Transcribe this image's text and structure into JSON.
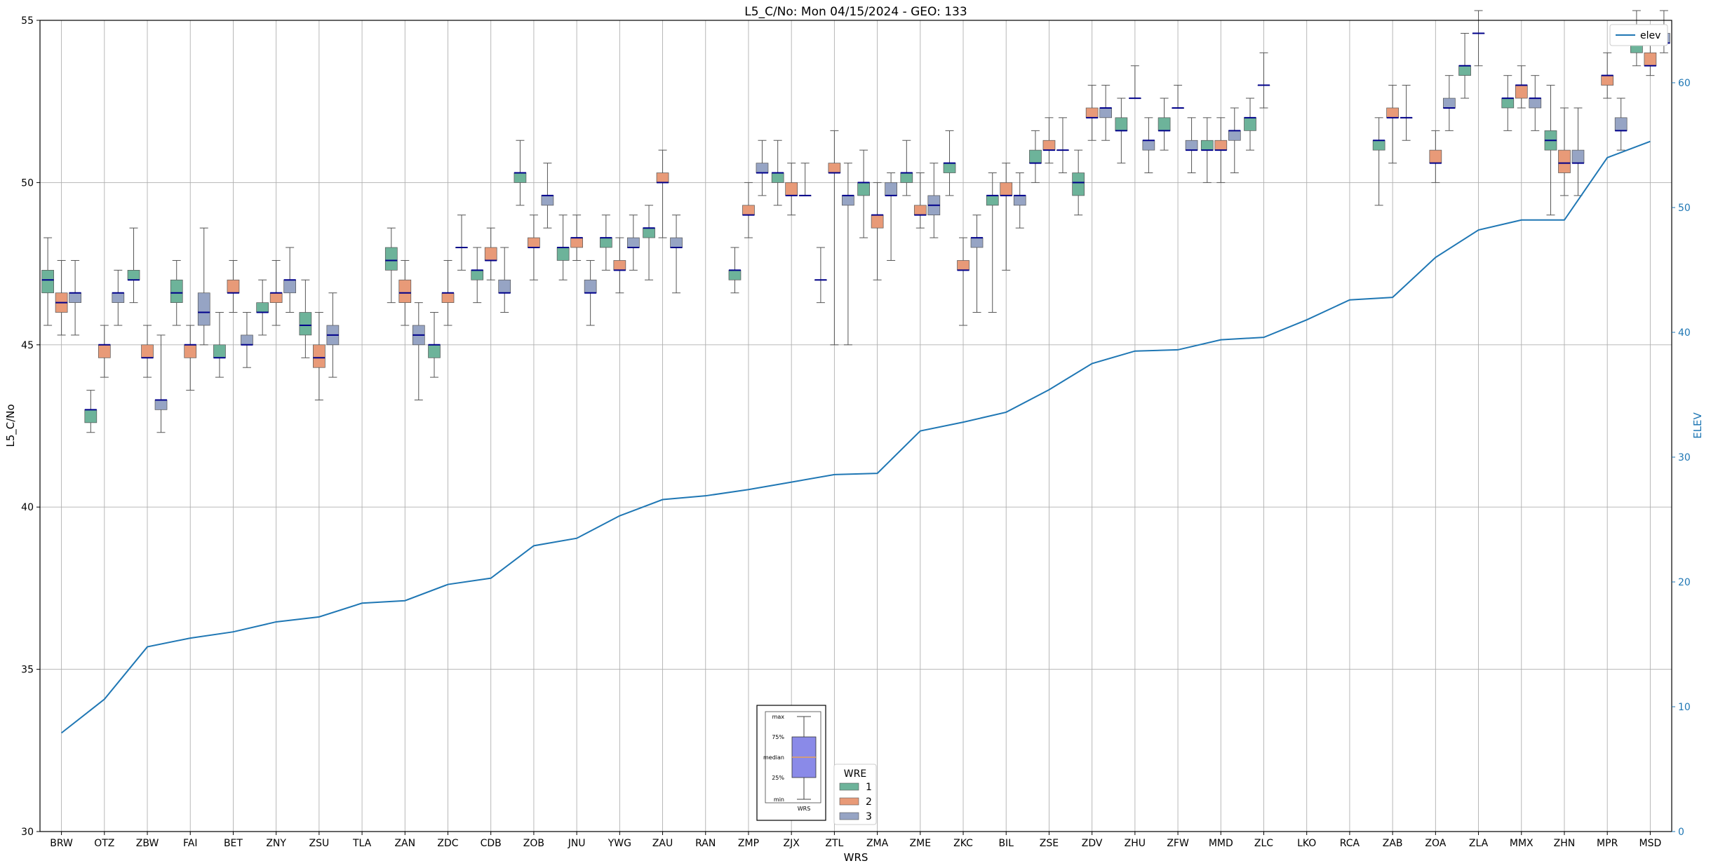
{
  "chart_data": {
    "type": "box",
    "title": "L5_C/No: Mon 04/15/2024 - GEO: 133",
    "xlabel": "WRS",
    "ylabel": "L5_C/No",
    "y2label": "ELEV",
    "ylim": [
      30,
      55
    ],
    "y2lim": [
      0,
      65
    ],
    "yticks": [
      30,
      35,
      40,
      45,
      50,
      55
    ],
    "y2ticks": [
      0,
      10,
      20,
      30,
      40,
      50,
      60
    ],
    "grid": true,
    "categories": [
      "BRW",
      "OTZ",
      "ZBW",
      "FAI",
      "BET",
      "ZNY",
      "ZSU",
      "TLA",
      "ZAN",
      "ZDC",
      "CDB",
      "ZOB",
      "JNU",
      "YWG",
      "ZAU",
      "RAN",
      "ZMP",
      "ZJX",
      "ZTL",
      "ZMA",
      "ZME",
      "ZKC",
      "BIL",
      "ZSE",
      "ZDV",
      "ZHU",
      "ZFW",
      "MMD",
      "ZLC",
      "LKO",
      "RCA",
      "ZAB",
      "ZOA",
      "ZLA",
      "MMX",
      "ZHN",
      "MPR",
      "MSD"
    ],
    "wre_colors": {
      "1": "#6db39a",
      "2": "#e89a78",
      "3": "#96a4c4"
    },
    "median_color": "#00008b",
    "whisker_color": "#555555",
    "series": [
      {
        "name": "1",
        "boxes": [
          {
            "cat": "BRW",
            "min": 45.6,
            "q1": 46.6,
            "med": 47.0,
            "q3": 47.3,
            "max": 48.3
          },
          {
            "cat": "OTZ",
            "min": 42.3,
            "q1": 42.6,
            "med": 43.0,
            "q3": 43.0,
            "max": 43.6
          },
          {
            "cat": "ZBW",
            "min": 46.3,
            "q1": 47.0,
            "med": 47.0,
            "q3": 47.3,
            "max": 48.6
          },
          {
            "cat": "FAI",
            "min": 45.6,
            "q1": 46.3,
            "med": 46.6,
            "q3": 47.0,
            "max": 47.6
          },
          {
            "cat": "BET",
            "min": 44.0,
            "q1": 44.6,
            "med": 44.6,
            "q3": 45.0,
            "max": 46.0
          },
          {
            "cat": "ZNY",
            "min": 45.3,
            "q1": 46.0,
            "med": 46.0,
            "q3": 46.3,
            "max": 47.0
          },
          {
            "cat": "ZSU",
            "min": 44.6,
            "q1": 45.3,
            "med": 45.6,
            "q3": 46.0,
            "max": 47.0
          },
          {
            "cat": "ZAN",
            "min": 46.3,
            "q1": 47.3,
            "med": 47.6,
            "q3": 48.0,
            "max": 48.6
          },
          {
            "cat": "ZDC",
            "min": 44.0,
            "q1": 44.6,
            "med": 45.0,
            "q3": 45.0,
            "max": 46.0
          },
          {
            "cat": "CDB",
            "min": 46.3,
            "q1": 47.0,
            "med": 47.3,
            "q3": 47.3,
            "max": 48.0
          },
          {
            "cat": "ZOB",
            "min": 49.3,
            "q1": 50.0,
            "med": 50.3,
            "q3": 50.3,
            "max": 51.3
          },
          {
            "cat": "JNU",
            "min": 47.0,
            "q1": 47.6,
            "med": 48.0,
            "q3": 48.0,
            "max": 49.0
          },
          {
            "cat": "YWG",
            "min": 47.3,
            "q1": 48.0,
            "med": 48.3,
            "q3": 48.3,
            "max": 49.0
          },
          {
            "cat": "ZAU",
            "min": 47.0,
            "q1": 48.3,
            "med": 48.6,
            "q3": 48.6,
            "max": 49.3
          },
          {
            "cat": "ZMP",
            "min": 46.6,
            "q1": 47.0,
            "med": 47.3,
            "q3": 47.3,
            "max": 48.0
          },
          {
            "cat": "ZJX",
            "min": 49.3,
            "q1": 50.0,
            "med": 50.3,
            "q3": 50.3,
            "max": 51.3
          },
          {
            "cat": "ZTL",
            "min": 46.3,
            "q1": 47.0,
            "med": 47.0,
            "q3": 47.0,
            "max": 48.0
          },
          {
            "cat": "ZMA",
            "min": 48.3,
            "q1": 49.6,
            "med": 50.0,
            "q3": 50.0,
            "max": 51.0
          },
          {
            "cat": "ZME",
            "min": 49.6,
            "q1": 50.0,
            "med": 50.3,
            "q3": 50.3,
            "max": 51.3
          },
          {
            "cat": "ZKC",
            "min": 49.6,
            "q1": 50.3,
            "med": 50.6,
            "q3": 50.6,
            "max": 51.6
          },
          {
            "cat": "BIL",
            "min": 46.0,
            "q1": 49.3,
            "med": 49.6,
            "q3": 49.6,
            "max": 50.3
          },
          {
            "cat": "ZSE",
            "min": 50.0,
            "q1": 50.6,
            "med": 50.6,
            "q3": 51.0,
            "max": 51.6
          },
          {
            "cat": "ZDV",
            "min": 49.0,
            "q1": 49.6,
            "med": 50.0,
            "q3": 50.3,
            "max": 51.0
          },
          {
            "cat": "ZHU",
            "min": 50.6,
            "q1": 51.6,
            "med": 51.6,
            "q3": 52.0,
            "max": 52.6
          },
          {
            "cat": "ZFW",
            "min": 51.0,
            "q1": 51.6,
            "med": 51.6,
            "q3": 52.0,
            "max": 52.6
          },
          {
            "cat": "MMD",
            "min": 50.0,
            "q1": 51.0,
            "med": 51.0,
            "q3": 51.3,
            "max": 52.0
          },
          {
            "cat": "ZLC",
            "min": 51.0,
            "q1": 51.6,
            "med": 52.0,
            "q3": 52.0,
            "max": 52.6
          },
          {
            "cat": "ZAB",
            "min": 49.3,
            "q1": 51.0,
            "med": 51.3,
            "q3": 51.3,
            "max": 52.0
          },
          {
            "cat": "ZLA",
            "min": 52.6,
            "q1": 53.3,
            "med": 53.6,
            "q3": 53.6,
            "max": 54.6
          },
          {
            "cat": "MMX",
            "min": 51.6,
            "q1": 52.3,
            "med": 52.6,
            "q3": 52.6,
            "max": 53.3
          },
          {
            "cat": "ZHN",
            "min": 49.0,
            "q1": 51.0,
            "med": 51.3,
            "q3": 51.6,
            "max": 53.0
          },
          {
            "cat": "MSD",
            "min": 53.6,
            "q1": 54.0,
            "med": 54.3,
            "q3": 54.3,
            "max": 55.3
          }
        ]
      },
      {
        "name": "2",
        "boxes": [
          {
            "cat": "BRW",
            "min": 45.3,
            "q1": 46.0,
            "med": 46.3,
            "q3": 46.6,
            "max": 47.6
          },
          {
            "cat": "OTZ",
            "min": 44.0,
            "q1": 44.6,
            "med": 45.0,
            "q3": 45.0,
            "max": 45.6
          },
          {
            "cat": "ZBW",
            "min": 44.0,
            "q1": 44.6,
            "med": 44.6,
            "q3": 45.0,
            "max": 45.6
          },
          {
            "cat": "FAI",
            "min": 43.6,
            "q1": 44.6,
            "med": 45.0,
            "q3": 45.0,
            "max": 45.6
          },
          {
            "cat": "BET",
            "min": 46.0,
            "q1": 46.6,
            "med": 46.6,
            "q3": 47.0,
            "max": 47.6
          },
          {
            "cat": "ZNY",
            "min": 45.6,
            "q1": 46.3,
            "med": 46.6,
            "q3": 46.6,
            "max": 47.6
          },
          {
            "cat": "ZSU",
            "min": 43.3,
            "q1": 44.3,
            "med": 44.6,
            "q3": 45.0,
            "max": 46.0
          },
          {
            "cat": "ZAN",
            "min": 45.6,
            "q1": 46.3,
            "med": 46.6,
            "q3": 47.0,
            "max": 47.6
          },
          {
            "cat": "ZDC",
            "min": 45.6,
            "q1": 46.3,
            "med": 46.6,
            "q3": 46.6,
            "max": 47.6
          },
          {
            "cat": "CDB",
            "min": 47.0,
            "q1": 47.6,
            "med": 47.6,
            "q3": 48.0,
            "max": 48.6
          },
          {
            "cat": "ZOB",
            "min": 47.0,
            "q1": 48.0,
            "med": 48.0,
            "q3": 48.3,
            "max": 49.0
          },
          {
            "cat": "JNU",
            "min": 47.6,
            "q1": 48.0,
            "med": 48.3,
            "q3": 48.3,
            "max": 49.0
          },
          {
            "cat": "YWG",
            "min": 46.6,
            "q1": 47.3,
            "med": 47.3,
            "q3": 47.6,
            "max": 48.3
          },
          {
            "cat": "ZAU",
            "min": 48.3,
            "q1": 50.0,
            "med": 50.0,
            "q3": 50.3,
            "max": 51.0
          },
          {
            "cat": "ZMP",
            "min": 48.3,
            "q1": 49.0,
            "med": 49.0,
            "q3": 49.3,
            "max": 50.0
          },
          {
            "cat": "ZJX",
            "min": 49.0,
            "q1": 49.6,
            "med": 49.6,
            "q3": 50.0,
            "max": 50.6
          },
          {
            "cat": "ZTL",
            "min": 45.0,
            "q1": 50.3,
            "med": 50.3,
            "q3": 50.6,
            "max": 51.6
          },
          {
            "cat": "ZMA",
            "min": 47.0,
            "q1": 48.6,
            "med": 49.0,
            "q3": 49.0,
            "max": 50.0
          },
          {
            "cat": "ZME",
            "min": 48.6,
            "q1": 49.0,
            "med": 49.0,
            "q3": 49.3,
            "max": 50.3
          },
          {
            "cat": "ZKC",
            "min": 45.6,
            "q1": 47.3,
            "med": 47.3,
            "q3": 47.6,
            "max": 48.3
          },
          {
            "cat": "BIL",
            "min": 47.3,
            "q1": 49.6,
            "med": 49.6,
            "q3": 50.0,
            "max": 50.6
          },
          {
            "cat": "ZSE",
            "min": 50.6,
            "q1": 51.0,
            "med": 51.0,
            "q3": 51.3,
            "max": 52.0
          },
          {
            "cat": "ZDV",
            "min": 51.3,
            "q1": 52.0,
            "med": 52.0,
            "q3": 52.3,
            "max": 53.0
          },
          {
            "cat": "ZHU",
            "min": 52.6,
            "q1": 52.6,
            "med": 52.6,
            "q3": 52.6,
            "max": 53.6
          },
          {
            "cat": "ZFW",
            "min": 52.3,
            "q1": 52.3,
            "med": 52.3,
            "q3": 52.3,
            "max": 53.0
          },
          {
            "cat": "MMD",
            "min": 50.0,
            "q1": 51.0,
            "med": 51.0,
            "q3": 51.3,
            "max": 52.0
          },
          {
            "cat": "ZLC",
            "min": 52.3,
            "q1": 53.0,
            "med": 53.0,
            "q3": 53.0,
            "max": 54.0
          },
          {
            "cat": "ZAB",
            "min": 50.6,
            "q1": 52.0,
            "med": 52.0,
            "q3": 52.3,
            "max": 53.0
          },
          {
            "cat": "ZOA",
            "min": 50.0,
            "q1": 50.6,
            "med": 50.6,
            "q3": 51.0,
            "max": 51.6
          },
          {
            "cat": "ZLA",
            "min": 53.6,
            "q1": 54.6,
            "med": 54.6,
            "q3": 54.6,
            "max": 55.3
          },
          {
            "cat": "MMX",
            "min": 52.3,
            "q1": 52.6,
            "med": 53.0,
            "q3": 53.0,
            "max": 53.6
          },
          {
            "cat": "ZHN",
            "min": 49.6,
            "q1": 50.3,
            "med": 50.6,
            "q3": 51.0,
            "max": 52.3
          },
          {
            "cat": "MPR",
            "min": 52.6,
            "q1": 53.0,
            "med": 53.3,
            "q3": 53.3,
            "max": 54.0
          },
          {
            "cat": "MSD",
            "min": 53.3,
            "q1": 53.6,
            "med": 53.6,
            "q3": 54.0,
            "max": 54.6
          }
        ]
      },
      {
        "name": "3",
        "boxes": [
          {
            "cat": "BRW",
            "min": 45.3,
            "q1": 46.3,
            "med": 46.6,
            "q3": 46.6,
            "max": 47.6
          },
          {
            "cat": "OTZ",
            "min": 45.6,
            "q1": 46.3,
            "med": 46.6,
            "q3": 46.6,
            "max": 47.3
          },
          {
            "cat": "ZBW",
            "min": 42.3,
            "q1": 43.0,
            "med": 43.3,
            "q3": 43.3,
            "max": 45.3
          },
          {
            "cat": "FAI",
            "min": 45.0,
            "q1": 45.6,
            "med": 46.0,
            "q3": 46.6,
            "max": 48.6
          },
          {
            "cat": "BET",
            "min": 44.3,
            "q1": 45.0,
            "med": 45.0,
            "q3": 45.3,
            "max": 46.0
          },
          {
            "cat": "ZNY",
            "min": 46.0,
            "q1": 46.6,
            "med": 47.0,
            "q3": 47.0,
            "max": 48.0
          },
          {
            "cat": "ZSU",
            "min": 44.0,
            "q1": 45.0,
            "med": 45.3,
            "q3": 45.6,
            "max": 46.6
          },
          {
            "cat": "ZAN",
            "min": 43.3,
            "q1": 45.0,
            "med": 45.3,
            "q3": 45.6,
            "max": 46.3
          },
          {
            "cat": "ZDC",
            "min": 47.3,
            "q1": 48.0,
            "med": 48.0,
            "q3": 48.0,
            "max": 49.0
          },
          {
            "cat": "CDB",
            "min": 46.0,
            "q1": 46.6,
            "med": 46.6,
            "q3": 47.0,
            "max": 48.0
          },
          {
            "cat": "ZOB",
            "min": 48.6,
            "q1": 49.3,
            "med": 49.6,
            "q3": 49.6,
            "max": 50.6
          },
          {
            "cat": "JNU",
            "min": 45.6,
            "q1": 46.6,
            "med": 46.6,
            "q3": 47.0,
            "max": 47.6
          },
          {
            "cat": "YWG",
            "min": 47.3,
            "q1": 48.0,
            "med": 48.0,
            "q3": 48.3,
            "max": 49.0
          },
          {
            "cat": "ZAU",
            "min": 46.6,
            "q1": 48.0,
            "med": 48.0,
            "q3": 48.3,
            "max": 49.0
          },
          {
            "cat": "ZMP",
            "min": 49.6,
            "q1": 50.3,
            "med": 50.3,
            "q3": 50.6,
            "max": 51.3
          },
          {
            "cat": "ZJX",
            "min": 49.6,
            "q1": 49.6,
            "med": 49.6,
            "q3": 49.6,
            "max": 50.6
          },
          {
            "cat": "ZTL",
            "min": 45.0,
            "q1": 49.3,
            "med": 49.6,
            "q3": 49.6,
            "max": 50.6
          },
          {
            "cat": "ZMA",
            "min": 47.6,
            "q1": 49.6,
            "med": 49.6,
            "q3": 50.0,
            "max": 50.3
          },
          {
            "cat": "ZME",
            "min": 48.3,
            "q1": 49.0,
            "med": 49.3,
            "q3": 49.6,
            "max": 50.6
          },
          {
            "cat": "ZKC",
            "min": 46.0,
            "q1": 48.0,
            "med": 48.3,
            "q3": 48.3,
            "max": 49.0
          },
          {
            "cat": "BIL",
            "min": 48.6,
            "q1": 49.3,
            "med": 49.6,
            "q3": 49.6,
            "max": 50.3
          },
          {
            "cat": "ZSE",
            "min": 50.3,
            "q1": 51.0,
            "med": 51.0,
            "q3": 51.0,
            "max": 52.0
          },
          {
            "cat": "ZDV",
            "min": 51.3,
            "q1": 52.0,
            "med": 52.3,
            "q3": 52.3,
            "max": 53.0
          },
          {
            "cat": "ZHU",
            "min": 50.3,
            "q1": 51.0,
            "med": 51.3,
            "q3": 51.3,
            "max": 52.0
          },
          {
            "cat": "ZFW",
            "min": 50.3,
            "q1": 51.0,
            "med": 51.0,
            "q3": 51.3,
            "max": 52.0
          },
          {
            "cat": "MMD",
            "min": 50.3,
            "q1": 51.3,
            "med": 51.6,
            "q3": 51.6,
            "max": 52.3
          },
          {
            "cat": "ZAB",
            "min": 51.3,
            "q1": 52.0,
            "med": 52.0,
            "q3": 52.0,
            "max": 53.0
          },
          {
            "cat": "ZOA",
            "min": 51.6,
            "q1": 52.3,
            "med": 52.3,
            "q3": 52.6,
            "max": 53.3
          },
          {
            "cat": "MMX",
            "min": 51.6,
            "q1": 52.3,
            "med": 52.6,
            "q3": 52.6,
            "max": 53.3
          },
          {
            "cat": "ZHN",
            "min": 49.6,
            "q1": 50.6,
            "med": 50.6,
            "q3": 51.0,
            "max": 52.3
          },
          {
            "cat": "MPR",
            "min": 51.0,
            "q1": 51.6,
            "med": 51.6,
            "q3": 52.0,
            "max": 52.6
          },
          {
            "cat": "MSD",
            "min": 54.0,
            "q1": 54.3,
            "med": 54.3,
            "q3": 54.6,
            "max": 55.3
          }
        ]
      }
    ],
    "line_series": {
      "name": "elev",
      "color": "#1f77b4",
      "axis": "right",
      "values": [
        7.9,
        10.6,
        14.8,
        15.5,
        16.0,
        16.8,
        17.2,
        18.3,
        18.5,
        19.8,
        20.3,
        22.9,
        23.5,
        25.3,
        26.6,
        26.9,
        27.4,
        28.0,
        28.6,
        28.7,
        32.1,
        32.8,
        33.6,
        35.4,
        37.5,
        38.5,
        38.6,
        39.4,
        39.6,
        41.0,
        42.6,
        42.8,
        46.0,
        48.2,
        49.0,
        49.0,
        54.0,
        55.3
      ]
    },
    "legend": {
      "title": "WRE",
      "placement": "bottom-center",
      "entries": [
        "1",
        "2",
        "3"
      ],
      "line_legend_placement": "top-right"
    },
    "inset_key": {
      "labels": [
        "max",
        "75%",
        "median",
        "25%",
        "min"
      ],
      "xlabel": "WRS",
      "box_color": "#8a8ae8",
      "median_color": "#e8a25a"
    }
  }
}
